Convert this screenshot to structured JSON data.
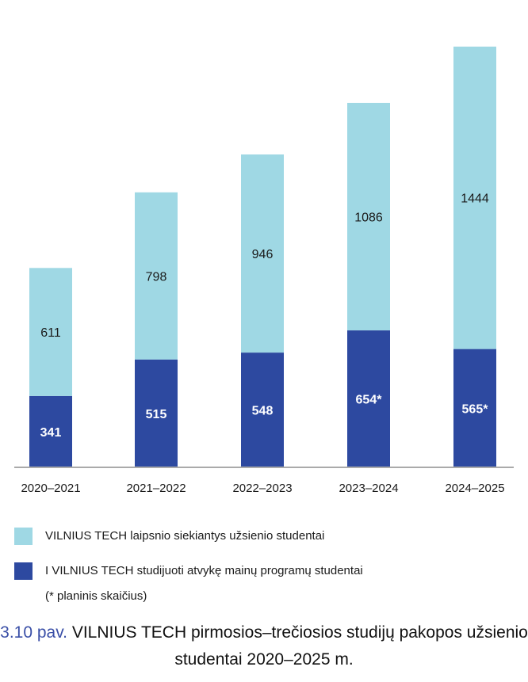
{
  "colors": {
    "light": "#9fd8e4",
    "dark": "#2d49a0",
    "axis": "#aaaaaa",
    "caption_number": "#3a4fa7"
  },
  "chart_data": {
    "type": "bar",
    "stacked": true,
    "categories": [
      "2020–2021",
      "2021–2022",
      "2022–2023",
      "2023–2024",
      "2024–2025"
    ],
    "series": [
      {
        "name": "I VILNIUS TECH studijuoti atvykę mainų programų studentai",
        "color": "#2d49a0",
        "values": [
          341,
          515,
          548,
          654,
          565
        ],
        "labels": [
          "341",
          "515",
          "548",
          "654*",
          "565*"
        ]
      },
      {
        "name": "VILNIUS TECH laipsnio siekiantys užsienio studentai",
        "color": "#9fd8e4",
        "values": [
          611,
          798,
          946,
          1086,
          1444
        ],
        "labels": [
          "611",
          "798",
          "946",
          "1086",
          "1444"
        ]
      }
    ],
    "legend_note": "(* planinis skaičius)"
  },
  "caption": {
    "number": "3.10 pav.",
    "text": "VILNIUS TECH pirmosios–trečiosios studijų pakopos užsienio studentai 2020–2025 m."
  }
}
